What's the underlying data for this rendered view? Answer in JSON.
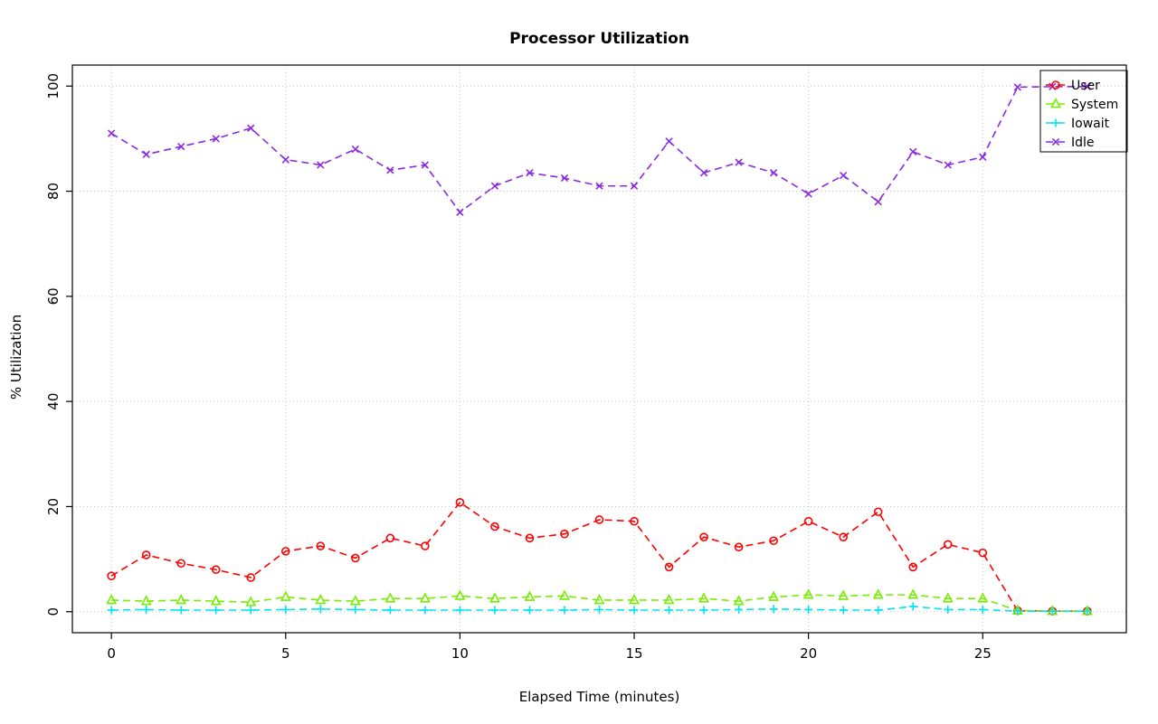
{
  "chart_data": {
    "type": "line",
    "title": "Processor Utilization",
    "xlabel": "Elapsed Time (minutes)",
    "ylabel": "% Utilization",
    "grid": true,
    "line_style": "dashed",
    "legend_position": "top-right",
    "xlim": [
      -1.12,
      29.12
    ],
    "ylim": [
      -4,
      104
    ],
    "xticks": [
      0,
      5,
      10,
      15,
      20,
      25
    ],
    "yticks": [
      0,
      20,
      40,
      60,
      80,
      100
    ],
    "x": [
      0,
      1,
      2,
      3,
      4,
      5,
      6,
      7,
      8,
      9,
      10,
      11,
      12,
      13,
      14,
      15,
      16,
      17,
      18,
      19,
      20,
      21,
      22,
      23,
      24,
      25,
      26,
      27,
      28
    ],
    "series": [
      {
        "name": "User",
        "color": "#FF0000",
        "marker": "circle",
        "values": [
          6.8,
          10.8,
          9.2,
          8.0,
          6.5,
          11.5,
          12.5,
          10.2,
          14.0,
          12.5,
          20.8,
          16.2,
          14.0,
          14.8,
          17.5,
          17.2,
          8.5,
          14.2,
          12.3,
          13.5,
          17.2,
          14.2,
          19.0,
          8.5,
          12.8,
          11.2,
          0.2,
          0.1,
          0.1
        ]
      },
      {
        "name": "System",
        "color": "#76EE00",
        "marker": "triangle",
        "values": [
          2.2,
          2.0,
          2.2,
          2.0,
          1.8,
          2.8,
          2.2,
          2.0,
          2.5,
          2.5,
          3.0,
          2.5,
          2.8,
          3.0,
          2.2,
          2.2,
          2.2,
          2.5,
          2.0,
          2.8,
          3.2,
          3.0,
          3.2,
          3.2,
          2.5,
          2.5,
          0.2,
          0.1,
          0.1
        ]
      },
      {
        "name": "Iowait",
        "color": "#00E5EE",
        "marker": "plus",
        "values": [
          0.3,
          0.4,
          0.3,
          0.3,
          0.3,
          0.4,
          0.5,
          0.4,
          0.3,
          0.3,
          0.3,
          0.3,
          0.3,
          0.3,
          0.4,
          0.3,
          0.3,
          0.3,
          0.4,
          0.5,
          0.4,
          0.3,
          0.3,
          1.0,
          0.4,
          0.4,
          0.1,
          0.1,
          0.1
        ]
      },
      {
        "name": "Idle",
        "color": "#8A2BE2",
        "marker": "x",
        "values": [
          91.0,
          87.0,
          88.5,
          90.0,
          92.0,
          86.0,
          85.0,
          88.0,
          84.0,
          85.0,
          76.0,
          81.0,
          83.5,
          82.5,
          81.0,
          81.0,
          89.5,
          83.5,
          85.5,
          83.5,
          79.5,
          83.0,
          78.0,
          87.5,
          85.0,
          86.5,
          99.8,
          99.9,
          99.9
        ]
      }
    ]
  }
}
